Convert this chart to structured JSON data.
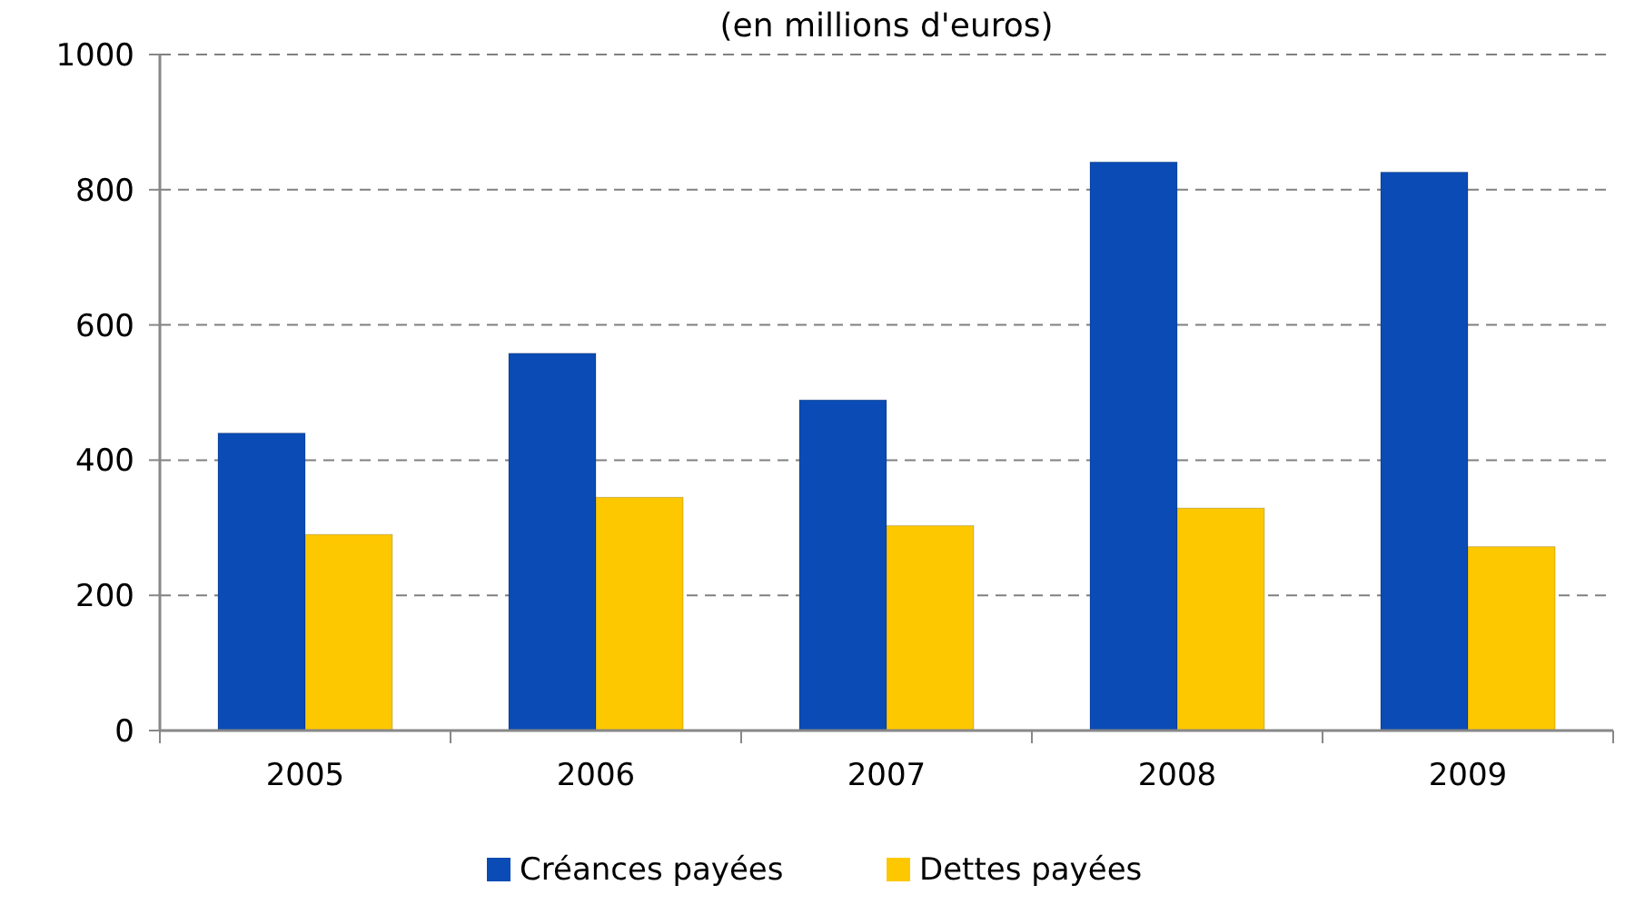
{
  "chart_data": {
    "type": "bar",
    "title": "(en millions d'euros)",
    "categories": [
      "2005",
      "2006",
      "2007",
      "2008",
      "2009"
    ],
    "series": [
      {
        "name": "Créances payées",
        "color": "#0a4bb5",
        "values": [
          440,
          558,
          489,
          841,
          826
        ]
      },
      {
        "name": "Dettes payées",
        "color": "#fec800",
        "values": [
          290,
          345,
          303,
          329,
          272
        ]
      }
    ],
    "ylim": [
      0,
      1000
    ],
    "yticks": [
      0,
      200,
      400,
      600,
      800,
      1000
    ],
    "grid": "y",
    "legend": "bottom"
  }
}
